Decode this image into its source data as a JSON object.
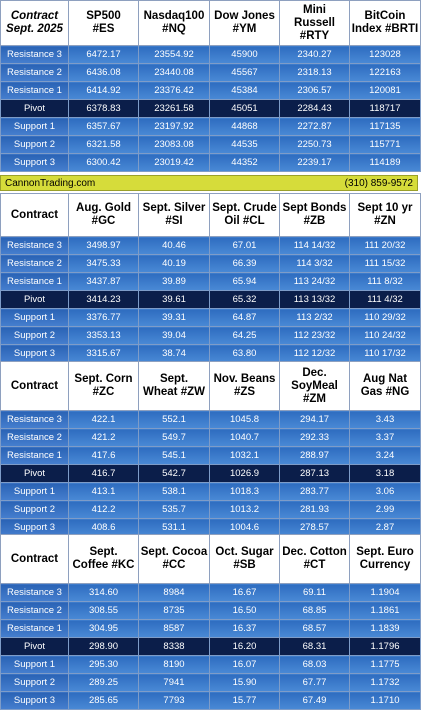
{
  "sections": [
    {
      "headers": [
        "Contract\nSept. 2025",
        "SP500\n#ES",
        "Nasdaq100\n#NQ",
        "Dow Jones\n#YM",
        "Mini\nRussell\n#RTY",
        "BitCoin\nIndex #BRTI"
      ],
      "rows": [
        {
          "label": "Resistance 3",
          "values": [
            "6472.17",
            "23554.92",
            "45900",
            "2340.27",
            "123028"
          ]
        },
        {
          "label": "Resistance 2",
          "values": [
            "6436.08",
            "23440.08",
            "45567",
            "2318.13",
            "122163"
          ]
        },
        {
          "label": "Resistance 1",
          "values": [
            "6414.92",
            "23376.42",
            "45384",
            "2306.57",
            "120081"
          ]
        },
        {
          "label": "Pivot",
          "values": [
            "6378.83",
            "23261.58",
            "45051",
            "2284.43",
            "118717"
          ]
        },
        {
          "label": "Support 1",
          "values": [
            "6357.67",
            "23197.92",
            "44868",
            "2272.87",
            "117135"
          ]
        },
        {
          "label": "Support 2",
          "values": [
            "6321.58",
            "23083.08",
            "44535",
            "2250.73",
            "115771"
          ]
        },
        {
          "label": "Support 3",
          "values": [
            "6300.42",
            "23019.42",
            "44352",
            "2239.17",
            "114189"
          ]
        }
      ]
    },
    {
      "headers": [
        "Contract",
        "Aug. Gold\n#GC",
        "Sept. Silver\n#SI",
        "Sept. Crude\nOil #CL",
        "Sept Bonds\n#ZB",
        "Sept 10 yr\n#ZN"
      ],
      "rows": [
        {
          "label": "Resistance 3",
          "values": [
            "3498.97",
            "40.46",
            "67.01",
            "114 14/32",
            "111 20/32"
          ]
        },
        {
          "label": "Resistance 2",
          "values": [
            "3475.33",
            "40.19",
            "66.39",
            "114  3/32",
            "111 15/32"
          ]
        },
        {
          "label": "Resistance 1",
          "values": [
            "3437.87",
            "39.89",
            "65.94",
            "113 24/32",
            "111  8/32"
          ]
        },
        {
          "label": "Pivot",
          "values": [
            "3414.23",
            "39.61",
            "65.32",
            "113 13/32",
            "111  4/32"
          ]
        },
        {
          "label": "Support 1",
          "values": [
            "3376.77",
            "39.31",
            "64.87",
            "113  2/32",
            "110 29/32"
          ]
        },
        {
          "label": "Support 2",
          "values": [
            "3353.13",
            "39.04",
            "64.25",
            "112 23/32",
            "110 24/32"
          ]
        },
        {
          "label": "Support 3",
          "values": [
            "3315.67",
            "38.74",
            "63.80",
            "112 12/32",
            "110 17/32"
          ]
        }
      ]
    },
    {
      "headers": [
        "Contract",
        "Sept. Corn\n#ZC",
        "Sept.\nWheat #ZW",
        "Nov. Beans\n#ZS",
        "Dec.\nSoyMeal\n#ZM",
        "Aug Nat\nGas #NG"
      ],
      "rows": [
        {
          "label": "Resistance 3",
          "values": [
            "422.1",
            "552.1",
            "1045.8",
            "294.17",
            "3.43"
          ]
        },
        {
          "label": "Resistance 2",
          "values": [
            "421.2",
            "549.7",
            "1040.7",
            "292.33",
            "3.37"
          ]
        },
        {
          "label": "Resistance 1",
          "values": [
            "417.6",
            "545.1",
            "1032.1",
            "288.97",
            "3.24"
          ]
        },
        {
          "label": "Pivot",
          "values": [
            "416.7",
            "542.7",
            "1026.9",
            "287.13",
            "3.18"
          ]
        },
        {
          "label": "Support 1",
          "values": [
            "413.1",
            "538.1",
            "1018.3",
            "283.77",
            "3.06"
          ]
        },
        {
          "label": "Support 2",
          "values": [
            "412.2",
            "535.7",
            "1013.2",
            "281.93",
            "2.99"
          ]
        },
        {
          "label": "Support 3",
          "values": [
            "408.6",
            "531.1",
            "1004.6",
            "278.57",
            "2.87"
          ]
        }
      ]
    },
    {
      "headers": [
        "Contract",
        "Sept.\nCoffee #KC",
        "Sept. Cocoa\n#CC",
        "Oct. Sugar\n#SB",
        "Dec. Cotton\n#CT",
        "Sept. Euro\nCurrency"
      ],
      "rows": [
        {
          "label": "Resistance 3",
          "values": [
            "314.60",
            "8984",
            "16.67",
            "69.11",
            "1.1904"
          ]
        },
        {
          "label": "Resistance 2",
          "values": [
            "308.55",
            "8735",
            "16.50",
            "68.85",
            "1.1861"
          ]
        },
        {
          "label": "Resistance 1",
          "values": [
            "304.95",
            "8587",
            "16.37",
            "68.57",
            "1.1839"
          ]
        },
        {
          "label": "Pivot",
          "values": [
            "298.90",
            "8338",
            "16.20",
            "68.31",
            "1.1796"
          ]
        },
        {
          "label": "Support 1",
          "values": [
            "295.30",
            "8190",
            "16.07",
            "68.03",
            "1.1775"
          ]
        },
        {
          "label": "Support 2",
          "values": [
            "289.25",
            "7941",
            "15.90",
            "67.77",
            "1.1732"
          ]
        },
        {
          "label": "Support 3",
          "values": [
            "285.65",
            "7793",
            "15.77",
            "67.49",
            "1.1710"
          ]
        }
      ]
    }
  ],
  "banner": {
    "left": "CannonTrading.com",
    "right": "(310) 859-9572"
  }
}
